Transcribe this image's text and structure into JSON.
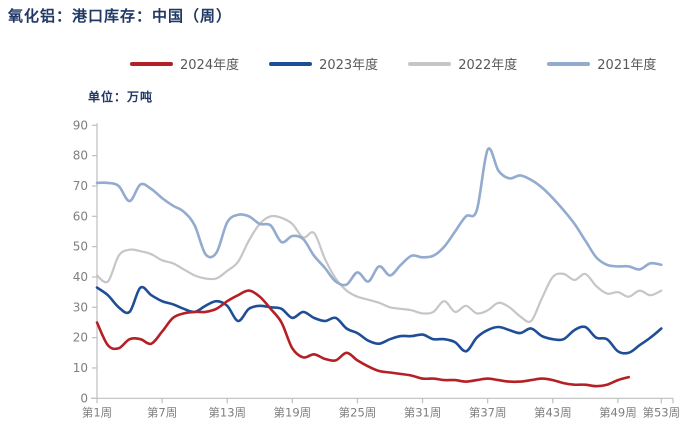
{
  "title": "氧化铝：港口库存：中国（周）",
  "unit_label": "单位：万吨",
  "styles": {
    "title_color": "#1f3864",
    "unit_color": "#1f3864",
    "legend_text_color": "#595959",
    "axis_color": "#bfbfbf",
    "tick_label_color": "#7f7f7f",
    "background": "#ffffff"
  },
  "legend": {
    "items": [
      {
        "label": "2024年度",
        "color": "#b42025"
      },
      {
        "label": "2023年度",
        "color": "#1f4e96"
      },
      {
        "label": "2022年度",
        "color": "#c6c6c6"
      },
      {
        "label": "2021年度",
        "color": "#92abce"
      }
    ]
  },
  "chart_data": {
    "type": "line",
    "title": "氧化铝：港口库存：中国（周）",
    "ylabel": "万吨",
    "xlabel": "周",
    "ylim": [
      0,
      90
    ],
    "y_ticks": [
      0,
      10,
      20,
      30,
      40,
      50,
      60,
      70,
      80,
      90
    ],
    "x_domain_weeks": [
      1,
      53
    ],
    "x_tick_weeks": [
      1,
      7,
      13,
      19,
      25,
      31,
      37,
      43,
      49,
      53
    ],
    "x_tick_labels": [
      "第1周",
      "第7周",
      "第13周",
      "第19周",
      "第25周",
      "第31周",
      "第37周",
      "第43周",
      "第49周",
      "第53周"
    ],
    "grid": false,
    "smooth": true,
    "legend_position": "top",
    "series": [
      {
        "name": "2022年度",
        "color": "#c6c6c6",
        "width": 2.2,
        "start_week": 1,
        "values": [
          40.5,
          38.5,
          47,
          49,
          48.5,
          47.5,
          45.5,
          44.5,
          42.5,
          40.5,
          39.5,
          39.5,
          42,
          45,
          52,
          57.5,
          60,
          59.5,
          57.5,
          53,
          54.5,
          46,
          39.5,
          35.5,
          33.5,
          32.5,
          31.5,
          30,
          29.5,
          29,
          28,
          28.5,
          32,
          28.5,
          30.5,
          28,
          29,
          31.5,
          30,
          27,
          25.5,
          33,
          40,
          41,
          39,
          41,
          37,
          34.5,
          35,
          33.5,
          35.5,
          34,
          35.5
        ]
      },
      {
        "name": "2021年度",
        "color": "#92abce",
        "width": 2.6,
        "start_week": 1,
        "values": [
          71,
          71,
          70,
          65,
          70.5,
          69,
          66,
          63.5,
          61.5,
          57,
          47.5,
          48,
          58,
          60.5,
          60,
          57.5,
          57,
          51.5,
          53.5,
          52.5,
          47,
          43,
          38.5,
          37.5,
          41.5,
          38.5,
          43.5,
          40.5,
          44,
          47,
          46.5,
          47,
          50,
          55,
          60,
          62,
          82,
          75,
          72.5,
          73.5,
          72,
          69.5,
          66,
          62,
          57.5,
          52,
          46.5,
          44,
          43.5,
          43.5,
          42.5,
          44.5,
          44
        ]
      },
      {
        "name": "2023年度",
        "color": "#1f4e96",
        "width": 2.6,
        "start_week": 1,
        "values": [
          36.5,
          34,
          30,
          28.5,
          36.5,
          34,
          32,
          31,
          29.5,
          28.5,
          30.5,
          32,
          30.5,
          25.5,
          29.5,
          30.5,
          30,
          29.5,
          26.5,
          28.5,
          26.5,
          25.5,
          26.5,
          23,
          21.5,
          19,
          18,
          19.5,
          20.5,
          20.5,
          21,
          19.5,
          19.5,
          18.5,
          15.5,
          20,
          22.5,
          23.5,
          22.5,
          21.5,
          23,
          20.5,
          19.5,
          19.5,
          22.5,
          23.5,
          20,
          19.5,
          15.5,
          15,
          17.5,
          20,
          23
        ]
      },
      {
        "name": "2024年度",
        "color": "#b42025",
        "width": 2.6,
        "start_week": 1,
        "values": [
          25,
          17.5,
          16.5,
          19.5,
          19.5,
          18,
          22,
          26.5,
          28,
          28.5,
          28.5,
          29.5,
          32,
          34,
          35.5,
          33.5,
          29.5,
          25,
          16.5,
          13.5,
          14.5,
          13,
          12.5,
          15,
          12.5,
          10.5,
          9,
          8.5,
          8,
          7.5,
          6.5,
          6.5,
          6,
          6,
          5.5,
          6,
          6.5,
          6,
          5.5,
          5.5,
          6,
          6.5,
          6,
          5,
          4.5,
          4.5,
          4,
          4.5,
          6,
          7
        ]
      }
    ]
  }
}
